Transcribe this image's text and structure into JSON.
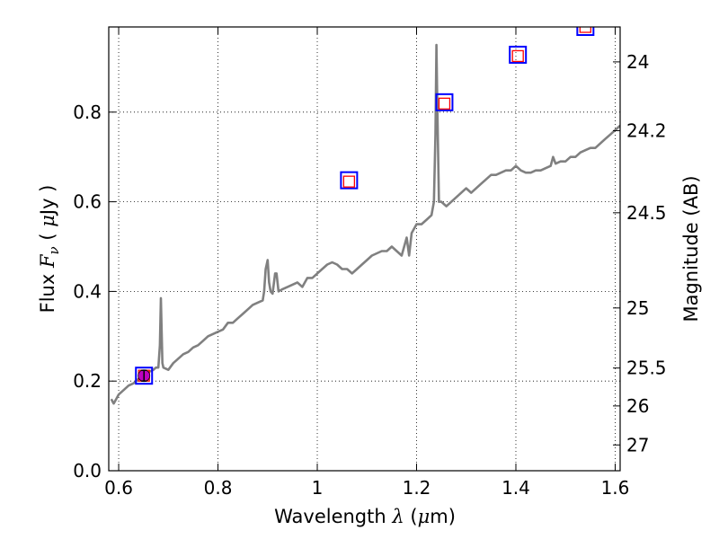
{
  "chart_data": {
    "type": "line",
    "xlabel_parts": {
      "prefix": "Wavelength",
      "sym": "λ",
      "unit_open": "(",
      "unit_mu": "μ",
      "unit_rest": "m)"
    },
    "ylabel_parts": {
      "prefix": "Flux",
      "sym": "F",
      "sub": "ν",
      "unit_open": "(",
      "unit_mu": "μ",
      "unit_rest": "Jy",
      "unit_close": ")"
    },
    "ylabel_right": "Magnitude (AB)",
    "xlim": [
      0.58,
      1.61
    ],
    "ylim": [
      0.0,
      0.99
    ],
    "grid": true,
    "x_ticks": [
      {
        "value": 0.6,
        "label": "0.6"
      },
      {
        "value": 0.8,
        "label": "0.8"
      },
      {
        "value": 1.0,
        "label": "1"
      },
      {
        "value": 1.2,
        "label": "1.2"
      },
      {
        "value": 1.4,
        "label": "1.4"
      },
      {
        "value": 1.6,
        "label": "1.6"
      }
    ],
    "y_ticks": [
      {
        "value": 0.0,
        "label": "0.0"
      },
      {
        "value": 0.2,
        "label": "0.2"
      },
      {
        "value": 0.4,
        "label": "0.4"
      },
      {
        "value": 0.6,
        "label": "0.6"
      },
      {
        "value": 0.8,
        "label": "0.8"
      }
    ],
    "right_ticks": [
      {
        "value": 24.0,
        "label": "24"
      },
      {
        "value": 24.2,
        "label": "24.2"
      },
      {
        "value": 24.5,
        "label": "24.5"
      },
      {
        "value": 25.0,
        "label": "25"
      },
      {
        "value": 25.5,
        "label": "25.5"
      },
      {
        "value": 26.0,
        "label": "26"
      },
      {
        "value": 27.0,
        "label": "27"
      }
    ],
    "series": [
      {
        "color": "#808080",
        "x": [
          0.585,
          0.59,
          0.595,
          0.6,
          0.61,
          0.62,
          0.63,
          0.64,
          0.65,
          0.66,
          0.67,
          0.675,
          0.68,
          0.683,
          0.685,
          0.688,
          0.69,
          0.7,
          0.71,
          0.72,
          0.73,
          0.74,
          0.75,
          0.76,
          0.77,
          0.78,
          0.79,
          0.8,
          0.81,
          0.82,
          0.83,
          0.84,
          0.85,
          0.86,
          0.87,
          0.88,
          0.89,
          0.893,
          0.896,
          0.9,
          0.903,
          0.906,
          0.91,
          0.915,
          0.918,
          0.922,
          0.93,
          0.94,
          0.95,
          0.96,
          0.97,
          0.98,
          0.99,
          1.0,
          1.01,
          1.02,
          1.03,
          1.04,
          1.05,
          1.06,
          1.07,
          1.08,
          1.09,
          1.1,
          1.11,
          1.12,
          1.13,
          1.14,
          1.15,
          1.16,
          1.17,
          1.18,
          1.185,
          1.19,
          1.2,
          1.21,
          1.22,
          1.23,
          1.235,
          1.238,
          1.24,
          1.242,
          1.245,
          1.25,
          1.26,
          1.27,
          1.28,
          1.29,
          1.3,
          1.31,
          1.32,
          1.33,
          1.34,
          1.35,
          1.36,
          1.37,
          1.38,
          1.39,
          1.4,
          1.405,
          1.41,
          1.42,
          1.43,
          1.44,
          1.45,
          1.46,
          1.47,
          1.475,
          1.48,
          1.49,
          1.5,
          1.51,
          1.52,
          1.53,
          1.54,
          1.55,
          1.56,
          1.57,
          1.58,
          1.59,
          1.6,
          1.61
        ],
        "y": [
          0.16,
          0.15,
          0.16,
          0.17,
          0.18,
          0.19,
          0.195,
          0.205,
          0.21,
          0.22,
          0.225,
          0.23,
          0.23,
          0.28,
          0.385,
          0.24,
          0.23,
          0.225,
          0.24,
          0.25,
          0.26,
          0.265,
          0.275,
          0.28,
          0.29,
          0.3,
          0.305,
          0.31,
          0.315,
          0.33,
          0.33,
          0.34,
          0.35,
          0.36,
          0.37,
          0.375,
          0.38,
          0.4,
          0.45,
          0.47,
          0.42,
          0.4,
          0.395,
          0.44,
          0.44,
          0.4,
          0.405,
          0.41,
          0.415,
          0.42,
          0.41,
          0.43,
          0.43,
          0.44,
          0.45,
          0.46,
          0.465,
          0.46,
          0.45,
          0.45,
          0.44,
          0.45,
          0.46,
          0.47,
          0.48,
          0.485,
          0.49,
          0.49,
          0.5,
          0.49,
          0.48,
          0.52,
          0.48,
          0.53,
          0.55,
          0.55,
          0.56,
          0.57,
          0.6,
          0.75,
          0.95,
          0.8,
          0.6,
          0.6,
          0.59,
          0.6,
          0.61,
          0.62,
          0.63,
          0.62,
          0.63,
          0.64,
          0.65,
          0.66,
          0.66,
          0.665,
          0.67,
          0.67,
          0.68,
          0.675,
          0.67,
          0.665,
          0.665,
          0.67,
          0.67,
          0.675,
          0.68,
          0.7,
          0.685,
          0.69,
          0.69,
          0.7,
          0.7,
          0.71,
          0.715,
          0.72,
          0.72,
          0.73,
          0.74,
          0.75,
          0.76,
          0.77
        ]
      }
    ],
    "photometry": [
      {
        "x": 0.651,
        "y": 0.212,
        "model_y": 0.212,
        "err": 0.012,
        "color_box": "#0000ff",
        "color_model": "#ff0000",
        "fill": "#bf00bf"
      },
      {
        "x": 1.064,
        "y": 0.648,
        "model_y": 0.645,
        "err": 0.0,
        "color_box": "#0000ff",
        "color_model": "#ff0000",
        "fill": "none"
      },
      {
        "x": 1.256,
        "y": 0.822,
        "model_y": 0.819,
        "err": 0.0,
        "color_box": "#0000ff",
        "color_model": "#ff0000",
        "fill": "none"
      },
      {
        "x": 1.404,
        "y": 0.928,
        "model_y": 0.925,
        "err": 0.0,
        "color_box": "#0000ff",
        "color_model": "#ff0000",
        "fill": "none"
      },
      {
        "x": 1.54,
        "y": 0.99,
        "model_y": 0.99,
        "err": 0.0,
        "color_box": "#0000ff",
        "color_model": "#ff0000",
        "fill": "none"
      }
    ]
  }
}
